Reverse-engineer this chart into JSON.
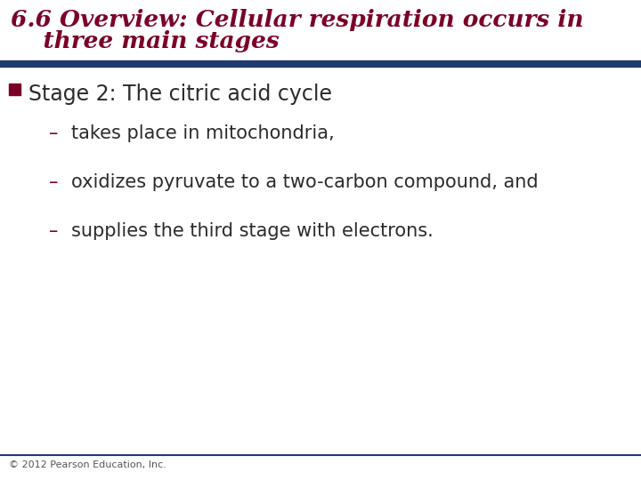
{
  "title_line1": "6.6 Overview: Cellular respiration occurs in",
  "title_line2": "    three main stages",
  "title_color": "#7B0028",
  "title_fontsize": 19,
  "separator_color": "#1F3A6E",
  "separator_linewidth": 6,
  "bullet_text": "Stage 2: The citric acid cycle",
  "bullet_color": "#2C2C2C",
  "bullet_marker_color": "#7B0028",
  "bullet_fontsize": 17,
  "sub_bullets": [
    "takes place in mitochondria,",
    "oxidizes pyruvate to a two-carbon compound, and",
    "supplies the third stage with electrons."
  ],
  "sub_bullet_fontsize": 15,
  "sub_bullet_color": "#2C2C2C",
  "dash_color": "#7B0028",
  "footer_text": "© 2012 Pearson Education, Inc.",
  "footer_fontsize": 8,
  "footer_color": "#555555",
  "footer_line_color": "#1F3A6E",
  "bg_color": "#FFFFFF"
}
